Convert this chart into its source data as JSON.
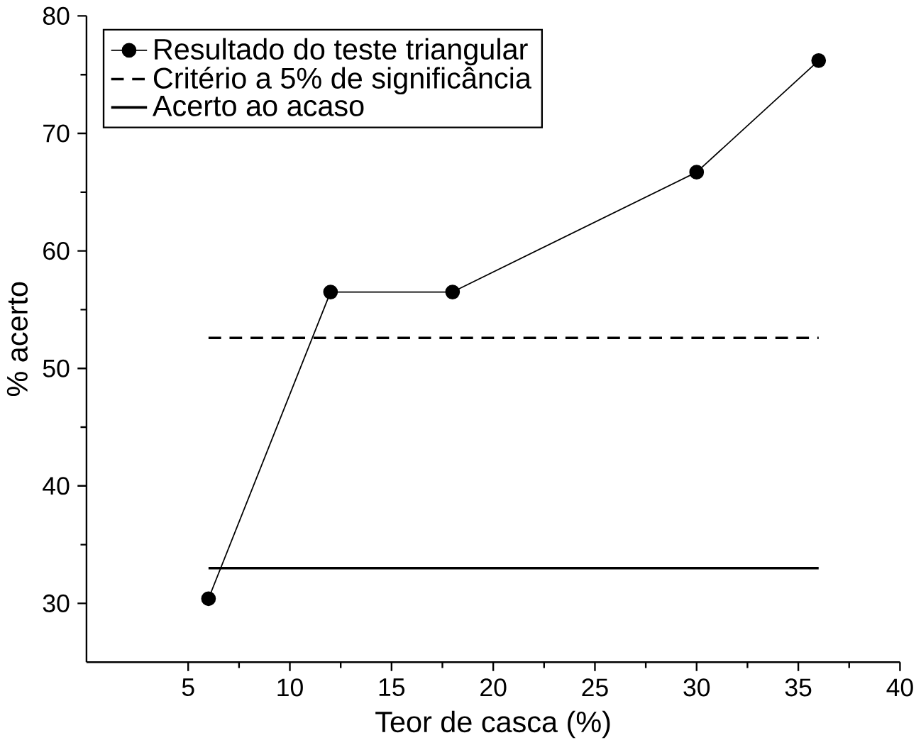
{
  "chart_data": {
    "type": "line",
    "xlabel": "Teor de casca (%)",
    "ylabel": "% acerto",
    "xlim": [
      0,
      40
    ],
    "ylim": [
      25,
      80
    ],
    "xticks": [
      5,
      10,
      15,
      20,
      25,
      30,
      35,
      40
    ],
    "yticks": [
      30,
      40,
      50,
      60,
      70,
      80
    ],
    "legend": "top left",
    "grid": false,
    "series": [
      {
        "name": "Resultado do teste triangular",
        "color": "#000000",
        "x": [
          6,
          12,
          18,
          30,
          36
        ],
        "values": [
          30.4,
          56.5,
          56.5,
          66.7,
          76.2
        ],
        "marker": "circle",
        "line_style": "solid"
      },
      {
        "name": "Critério a 5% de significância",
        "color": "#000000",
        "x": [
          6,
          36
        ],
        "values": [
          52.6,
          52.6
        ],
        "marker": "none",
        "line_style": "dashed"
      },
      {
        "name": "Acerto ao acaso",
        "color": "#000000",
        "x": [
          6,
          36
        ],
        "values": [
          33.0,
          33.0
        ],
        "marker": "none",
        "line_style": "solid"
      }
    ]
  }
}
